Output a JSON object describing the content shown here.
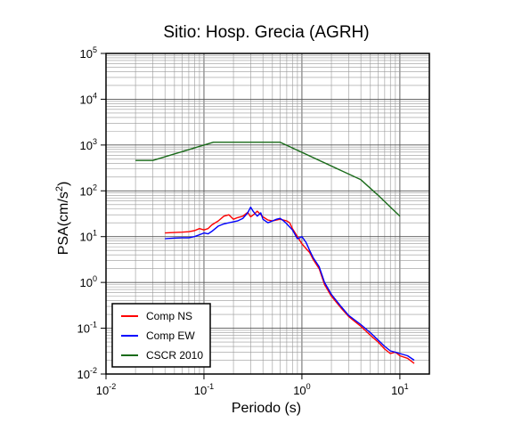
{
  "chart_data": {
    "type": "line",
    "title": "Sitio: Hosp. Grecia (AGRH)",
    "xlabel": "Periodo (s)",
    "ylabel": {
      "base": "PSA(cm/s",
      "sup": "2",
      "end": ")"
    },
    "xscale": "log",
    "yscale": "log",
    "xlim": [
      0.01,
      20
    ],
    "ylim": [
      0.01,
      100000
    ],
    "grid": true,
    "legend_position": "bottom-left",
    "x_ticks": [
      {
        "value": 0.01,
        "base": "10",
        "exp": "-2"
      },
      {
        "value": 0.1,
        "base": "10",
        "exp": "-1"
      },
      {
        "value": 1,
        "base": "10",
        "exp": "0"
      },
      {
        "value": 10,
        "base": "10",
        "exp": "1"
      }
    ],
    "y_ticks": [
      {
        "value": 0.01,
        "base": "10",
        "exp": "-2"
      },
      {
        "value": 0.1,
        "base": "10",
        "exp": "-1"
      },
      {
        "value": 1,
        "base": "10",
        "exp": "0"
      },
      {
        "value": 10,
        "base": "10",
        "exp": "1"
      },
      {
        "value": 100,
        "base": "10",
        "exp": "2"
      },
      {
        "value": 1000,
        "base": "10",
        "exp": "3"
      },
      {
        "value": 10000,
        "base": "10",
        "exp": "4"
      },
      {
        "value": 100000,
        "base": "10",
        "exp": "5"
      }
    ],
    "series": [
      {
        "name": "Comp NS",
        "color": "#ff0000",
        "points": [
          [
            0.04,
            12
          ],
          [
            0.05,
            12.3
          ],
          [
            0.06,
            12.5
          ],
          [
            0.07,
            12.8
          ],
          [
            0.08,
            13.5
          ],
          [
            0.09,
            15
          ],
          [
            0.1,
            14
          ],
          [
            0.11,
            15
          ],
          [
            0.12,
            18
          ],
          [
            0.14,
            22
          ],
          [
            0.16,
            28
          ],
          [
            0.18,
            30
          ],
          [
            0.2,
            24
          ],
          [
            0.22,
            26
          ],
          [
            0.25,
            28
          ],
          [
            0.28,
            34
          ],
          [
            0.3,
            27
          ],
          [
            0.32,
            30
          ],
          [
            0.35,
            36
          ],
          [
            0.4,
            27
          ],
          [
            0.45,
            23
          ],
          [
            0.5,
            22
          ],
          [
            0.55,
            23
          ],
          [
            0.6,
            24
          ],
          [
            0.7,
            22
          ],
          [
            0.75,
            20
          ],
          [
            0.8,
            15
          ],
          [
            0.9,
            10
          ],
          [
            1.0,
            7
          ],
          [
            1.1,
            5.5
          ],
          [
            1.2,
            4.5
          ],
          [
            1.3,
            3.2
          ],
          [
            1.5,
            2.0
          ],
          [
            1.7,
            0.9
          ],
          [
            2.0,
            0.5
          ],
          [
            2.5,
            0.28
          ],
          [
            3.0,
            0.18
          ],
          [
            4.0,
            0.11
          ],
          [
            5.0,
            0.07
          ],
          [
            6.0,
            0.05
          ],
          [
            7.0,
            0.035
          ],
          [
            8.0,
            0.028
          ],
          [
            9.0,
            0.03
          ],
          [
            10.0,
            0.025
          ],
          [
            12.0,
            0.022
          ],
          [
            14.0,
            0.017
          ]
        ]
      },
      {
        "name": "Comp EW",
        "color": "#0000ff",
        "points": [
          [
            0.04,
            9
          ],
          [
            0.05,
            9.3
          ],
          [
            0.06,
            9.5
          ],
          [
            0.07,
            9.5
          ],
          [
            0.08,
            10
          ],
          [
            0.09,
            11
          ],
          [
            0.1,
            12
          ],
          [
            0.11,
            11.5
          ],
          [
            0.12,
            13
          ],
          [
            0.14,
            17
          ],
          [
            0.16,
            19
          ],
          [
            0.18,
            20
          ],
          [
            0.2,
            21
          ],
          [
            0.22,
            22
          ],
          [
            0.25,
            25
          ],
          [
            0.28,
            33
          ],
          [
            0.3,
            44
          ],
          [
            0.32,
            35
          ],
          [
            0.35,
            28
          ],
          [
            0.38,
            33
          ],
          [
            0.4,
            24
          ],
          [
            0.45,
            20
          ],
          [
            0.5,
            22
          ],
          [
            0.55,
            24
          ],
          [
            0.6,
            25
          ],
          [
            0.65,
            22
          ],
          [
            0.7,
            19
          ],
          [
            0.8,
            14
          ],
          [
            0.9,
            9
          ],
          [
            1.0,
            10
          ],
          [
            1.1,
            7.5
          ],
          [
            1.2,
            5
          ],
          [
            1.3,
            3.5
          ],
          [
            1.5,
            2.2
          ],
          [
            1.7,
            1.0
          ],
          [
            2.0,
            0.55
          ],
          [
            2.5,
            0.3
          ],
          [
            3.0,
            0.19
          ],
          [
            4.0,
            0.12
          ],
          [
            5.0,
            0.08
          ],
          [
            6.0,
            0.055
          ],
          [
            7.0,
            0.04
          ],
          [
            8.0,
            0.032
          ],
          [
            9.0,
            0.03
          ],
          [
            10.0,
            0.028
          ],
          [
            12.0,
            0.025
          ],
          [
            14.0,
            0.02
          ]
        ]
      },
      {
        "name": "CSCR 2010",
        "color": "#1a6b1a",
        "points": [
          [
            0.02,
            460
          ],
          [
            0.03,
            460
          ],
          [
            0.125,
            1150
          ],
          [
            0.6,
            1150
          ],
          [
            4.0,
            175
          ],
          [
            6.0,
            80
          ],
          [
            10.0,
            28
          ]
        ]
      }
    ]
  }
}
